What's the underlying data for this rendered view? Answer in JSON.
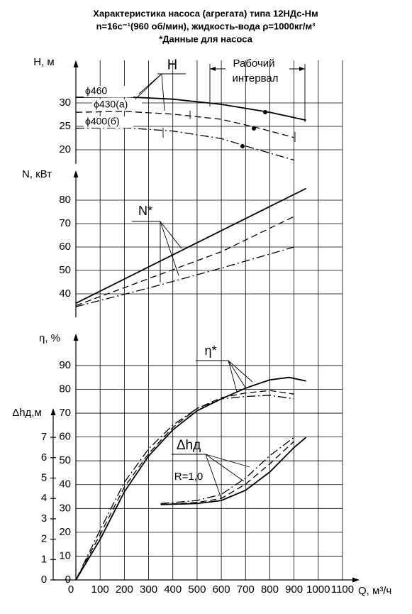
{
  "title": [
    "Характеристика насоса (агрегата) типа 12НДс-Нм",
    "n=16с⁻¹(960 об/мин), жидкость-вода ρ=1000кг/м³",
    "*Данные для насоса"
  ],
  "chart_data": [
    {
      "type": "line",
      "y_label": "H, м",
      "ylim": [
        17,
        38
      ],
      "yticks": [
        20,
        25,
        30
      ],
      "grid": true,
      "annotations": [
        "H",
        "Рабочий",
        "интервал"
      ],
      "series": [
        {
          "name": "ϕ460",
          "style": "solid",
          "color": "#000000",
          "x": [
            0,
            200,
            400,
            600,
            800,
            950
          ],
          "values": [
            31.2,
            31.3,
            30.8,
            29.7,
            28,
            26.3
          ]
        },
        {
          "name": "ϕ430(а)",
          "style": "dashed",
          "color": "#000000",
          "x": [
            0,
            200,
            400,
            600,
            750,
            900
          ],
          "values": [
            28,
            28.2,
            27.6,
            26.5,
            24.7,
            22.6
          ]
        },
        {
          "name": "ϕ400(б)",
          "style": "dashdot",
          "color": "#000000",
          "x": [
            0,
            200,
            400,
            600,
            700,
            900
          ],
          "values": [
            24.6,
            24.7,
            24,
            22.4,
            20.8,
            17.8
          ]
        }
      ]
    },
    {
      "type": "line",
      "y_label": "N, кВт",
      "ylim": [
        30,
        88
      ],
      "yticks": [
        40,
        50,
        60,
        70,
        80
      ],
      "grid": true,
      "annotations": [
        "N*"
      ],
      "series": [
        {
          "style": "solid",
          "color": "#000000",
          "x": [
            0,
            300,
            600,
            950
          ],
          "values": [
            36,
            51.5,
            67,
            85
          ]
        },
        {
          "style": "dashed",
          "color": "#000000",
          "x": [
            0,
            300,
            600,
            900
          ],
          "values": [
            35,
            46.5,
            58,
            73
          ]
        },
        {
          "style": "dashdot",
          "color": "#000000",
          "x": [
            0,
            300,
            600,
            900
          ],
          "values": [
            34.5,
            42.5,
            51,
            60
          ]
        }
      ]
    },
    {
      "type": "line",
      "y_label": "η, %",
      "y2_label": "Δhд,м",
      "x_label": "Q, м³/ч",
      "xlim": [
        0,
        1100
      ],
      "xticks": [
        0,
        100,
        200,
        300,
        400,
        500,
        600,
        700,
        800,
        900,
        1000,
        1100
      ],
      "ylim": [
        0,
        100
      ],
      "yticks": [
        0,
        10,
        20,
        30,
        40,
        50,
        60,
        70,
        80,
        90
      ],
      "y2lim": [
        0,
        8
      ],
      "y2ticks": [
        0,
        1,
        2,
        3,
        4,
        5,
        6,
        7
      ],
      "grid": true,
      "annotations": [
        "η*",
        "Δhд",
        "R=1,0"
      ],
      "series": [
        {
          "style": "solid",
          "color": "#000000",
          "x": [
            0,
            100,
            200,
            300,
            400,
            500,
            600,
            700,
            800,
            880,
            950
          ],
          "values": [
            0,
            17,
            37,
            52,
            63,
            71,
            76,
            80.5,
            84,
            85,
            83.5
          ]
        },
        {
          "style": "dashed",
          "color": "#000000",
          "x": [
            0,
            100,
            200,
            300,
            400,
            500,
            600,
            700,
            800,
            900
          ],
          "values": [
            0,
            19,
            39,
            53,
            64,
            72,
            76.5,
            78.5,
            79.5,
            78
          ]
        },
        {
          "style": "dashdot",
          "color": "#000000",
          "x": [
            0,
            100,
            200,
            300,
            400,
            500,
            600,
            700,
            800,
            900
          ],
          "values": [
            0,
            21,
            41,
            55,
            65,
            72,
            76,
            77,
            77.5,
            76
          ]
        },
        {
          "style": "solid",
          "color": "#000000",
          "axis": "y2",
          "x": [
            350,
            500,
            600,
            700,
            800,
            900,
            950
          ],
          "values": [
            3.7,
            3.75,
            3.9,
            4.4,
            5.3,
            6.5,
            7
          ]
        },
        {
          "style": "dashed",
          "color": "#000000",
          "axis": "y2",
          "x": [
            350,
            500,
            600,
            700,
            800,
            900
          ],
          "values": [
            3.7,
            3.8,
            4.0,
            4.7,
            5.7,
            6.8
          ]
        },
        {
          "style": "dashdot",
          "color": "#000000",
          "axis": "y2",
          "x": [
            350,
            500,
            600,
            700,
            800,
            900
          ],
          "values": [
            3.75,
            3.9,
            4.2,
            5.0,
            6.1,
            7.0
          ]
        }
      ]
    }
  ]
}
